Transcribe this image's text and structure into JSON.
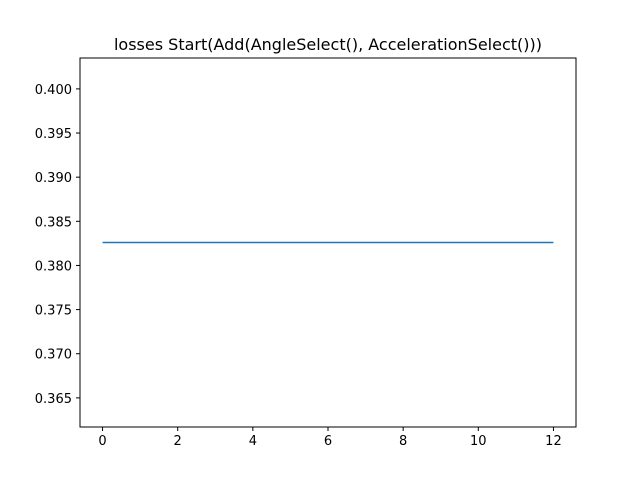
{
  "chart_data": {
    "type": "line",
    "title": "losses Start(Add(AngleSelect(), AccelerationSelect()))",
    "xlabel": "",
    "ylabel": "",
    "xlim": [
      -0.6,
      12.6
    ],
    "ylim": [
      0.3617,
      0.4035
    ],
    "x_ticks": [
      0,
      2,
      4,
      6,
      8,
      10,
      12
    ],
    "y_ticks": [
      0.365,
      0.37,
      0.375,
      0.38,
      0.385,
      0.39,
      0.395,
      0.4
    ],
    "y_tick_labels": [
      "0.365",
      "0.370",
      "0.375",
      "0.380",
      "0.385",
      "0.390",
      "0.395",
      "0.400"
    ],
    "grid": false,
    "series": [
      {
        "color": "#1f77b4",
        "x": [
          0,
          1,
          2,
          3,
          4,
          5,
          6,
          7,
          8,
          9,
          10,
          11,
          12
        ],
        "y": [
          0.3826,
          0.3826,
          0.3826,
          0.3826,
          0.3826,
          0.3826,
          0.3826,
          0.3826,
          0.3826,
          0.3826,
          0.3826,
          0.3826,
          0.3826
        ]
      }
    ]
  }
}
